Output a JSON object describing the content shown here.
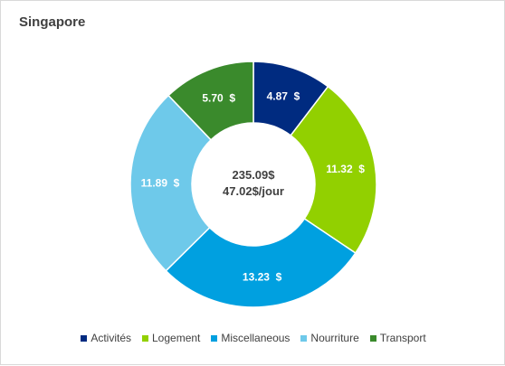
{
  "chart_data": {
    "type": "pie",
    "title": "Singapore",
    "center_total": "235.09$",
    "center_daily": "47.02$/jour",
    "slices": [
      {
        "name": "Activités",
        "value": 4.87,
        "label": "4.87  $",
        "color": "#002b80"
      },
      {
        "name": "Logement",
        "value": 11.32,
        "label": "11.32  $",
        "color": "#92d000"
      },
      {
        "name": "Miscellaneous",
        "value": 13.23,
        "label": "13.23  $",
        "color": "#00a0e0"
      },
      {
        "name": "Nourriture",
        "value": 11.89,
        "label": "11.89  $",
        "color": "#6ec9ea"
      },
      {
        "name": "Transport",
        "value": 5.7,
        "label": "5.70  $",
        "color": "#3a8a2c"
      }
    ],
    "legend_position": "bottom"
  }
}
